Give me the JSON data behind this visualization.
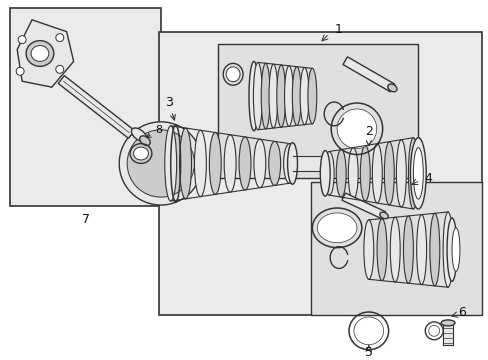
{
  "background_color": "#ffffff",
  "fig_width": 4.89,
  "fig_height": 3.6,
  "dpi": 100,
  "line_color": "#333333",
  "fill_light": "#e8e8e8",
  "fill_dark": "#cccccc",
  "fill_white": "#ffffff"
}
